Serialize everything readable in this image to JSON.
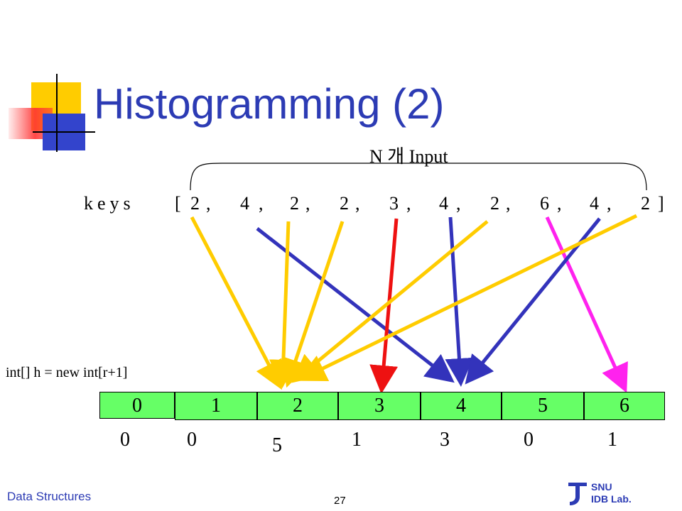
{
  "slide": {
    "title": "Histogramming (2)",
    "n_input_label": "N 개 Input",
    "keys_label": "keys",
    "keys_tokens": [
      "[",
      "2",
      ",",
      "4",
      ",",
      "2",
      ",",
      "2",
      ",",
      "3",
      ",",
      "4",
      ",",
      "2",
      ",",
      "6",
      ",",
      "4",
      ",",
      "2",
      "]"
    ],
    "keys": [
      2,
      4,
      2,
      2,
      3,
      4,
      2,
      6,
      4,
      2
    ],
    "code_label": "int[] h = new int[r+1]",
    "histogram": {
      "indices": [
        "0",
        "1",
        "2",
        "3",
        "4",
        "5",
        "6"
      ],
      "counts": [
        "0",
        "0",
        "5",
        "1",
        "3",
        "0",
        "1"
      ]
    },
    "arrow_colors": {
      "2": "#ffcc00",
      "3": "#ee1111",
      "4": "#3333bb",
      "6": "#ff22ee"
    },
    "cell_color": "#66ff66"
  },
  "footer": {
    "course": "Data Structures",
    "page": "27",
    "logo_line1": "SNU",
    "logo_line2": "IDB Lab."
  }
}
